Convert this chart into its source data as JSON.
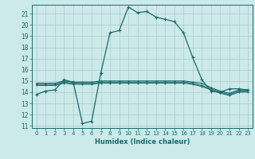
{
  "xlabel": "Humidex (Indice chaleur)",
  "bg_color": "#cceaea",
  "grid_color": "#aacccc",
  "line_color": "#1a6b6b",
  "xlim": [
    -0.5,
    23.5
  ],
  "ylim": [
    10.8,
    21.8
  ],
  "yticks": [
    11,
    12,
    13,
    14,
    15,
    16,
    17,
    18,
    19,
    20,
    21
  ],
  "xticks": [
    0,
    1,
    2,
    3,
    4,
    5,
    6,
    7,
    8,
    9,
    10,
    11,
    12,
    13,
    14,
    15,
    16,
    17,
    18,
    19,
    20,
    21,
    22,
    23
  ],
  "line1_x": [
    0,
    1,
    2,
    3,
    4,
    5,
    6,
    7,
    8,
    9,
    10,
    11,
    12,
    13,
    14,
    15,
    16,
    17,
    18,
    19,
    20,
    21,
    22,
    23
  ],
  "line1_y": [
    13.8,
    14.1,
    14.2,
    15.1,
    14.9,
    11.2,
    11.4,
    15.7,
    19.3,
    19.5,
    21.6,
    21.1,
    21.2,
    20.7,
    20.5,
    20.3,
    19.3,
    17.1,
    15.1,
    14.1,
    14.0,
    14.3,
    14.3,
    14.2
  ],
  "line2_x": [
    0,
    1,
    2,
    3,
    4,
    5,
    6,
    7,
    8,
    9,
    10,
    11,
    12,
    13,
    14,
    15,
    16,
    17,
    18,
    19,
    20,
    21,
    22,
    23
  ],
  "line2_y": [
    14.8,
    14.8,
    14.8,
    15.0,
    14.9,
    14.9,
    14.9,
    15.0,
    15.0,
    15.0,
    15.0,
    15.0,
    15.0,
    15.0,
    15.0,
    15.0,
    15.0,
    14.9,
    14.8,
    14.4,
    14.1,
    13.9,
    14.2,
    14.2
  ],
  "line3_x": [
    0,
    1,
    2,
    3,
    4,
    5,
    6,
    7,
    8,
    9,
    10,
    11,
    12,
    13,
    14,
    15,
    16,
    17,
    18,
    19,
    20,
    21,
    22,
    23
  ],
  "line3_y": [
    14.7,
    14.7,
    14.7,
    14.9,
    14.8,
    14.8,
    14.8,
    14.9,
    14.9,
    14.9,
    14.9,
    14.9,
    14.9,
    14.9,
    14.9,
    14.9,
    14.9,
    14.8,
    14.6,
    14.3,
    14.0,
    13.8,
    14.1,
    14.1
  ],
  "line4_x": [
    0,
    1,
    2,
    3,
    4,
    5,
    6,
    7,
    8,
    9,
    10,
    11,
    12,
    13,
    14,
    15,
    16,
    17,
    18,
    19,
    20,
    21,
    22,
    23
  ],
  "line4_y": [
    14.6,
    14.6,
    14.6,
    14.8,
    14.7,
    14.7,
    14.7,
    14.8,
    14.8,
    14.8,
    14.8,
    14.8,
    14.8,
    14.8,
    14.8,
    14.8,
    14.8,
    14.7,
    14.5,
    14.2,
    13.9,
    13.7,
    14.0,
    14.0
  ]
}
